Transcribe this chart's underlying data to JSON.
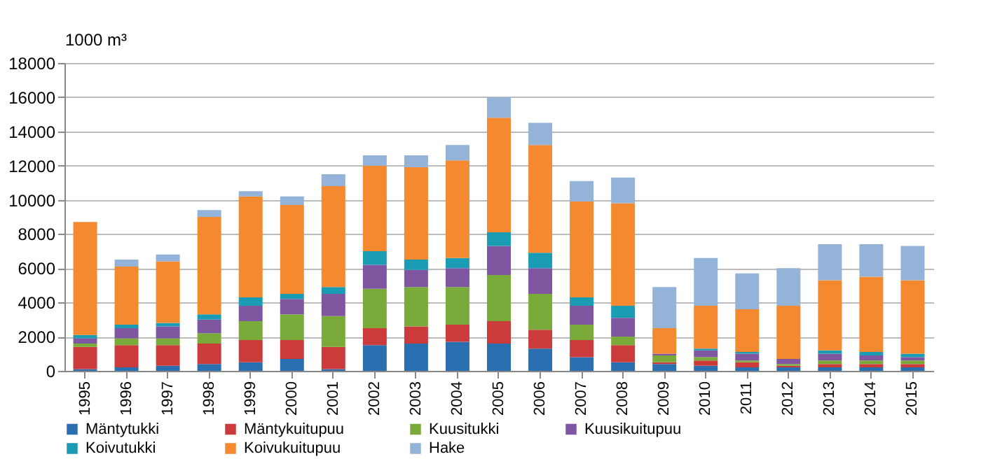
{
  "chart_data": {
    "type": "bar",
    "stacked": true,
    "ylabel": "1000 m³",
    "categories": [
      "1995",
      "1996",
      "1997",
      "1998",
      "1999",
      "2000",
      "2001",
      "2002",
      "2003",
      "2004",
      "2005",
      "2006",
      "2007",
      "2008",
      "2009",
      "2010",
      "2011",
      "2012",
      "2013",
      "2014",
      "2015"
    ],
    "ylim": [
      0,
      18000
    ],
    "yticks": [
      0,
      2000,
      4000,
      6000,
      8000,
      10000,
      12000,
      14000,
      16000,
      18000
    ],
    "grid": "y",
    "legend": "bottom",
    "series": [
      {
        "name": "Mäntytukki",
        "color": "#2a6fb0",
        "values": [
          100,
          200,
          300,
          400,
          500,
          700,
          100,
          1500,
          1600,
          1700,
          1600,
          1300,
          800,
          500,
          400,
          300,
          200,
          200,
          200,
          200,
          200
        ]
      },
      {
        "name": "Mäntykuitupuu",
        "color": "#cb3b3b",
        "values": [
          1300,
          1300,
          1200,
          1200,
          1300,
          1100,
          1300,
          1000,
          1000,
          1000,
          1300,
          1100,
          1000,
          1000,
          100,
          300,
          300,
          100,
          200,
          200,
          200
        ]
      },
      {
        "name": "Kuusitukki",
        "color": "#7aab3a",
        "values": [
          200,
          400,
          400,
          600,
          1100,
          1500,
          1800,
          2300,
          2300,
          2200,
          2700,
          2100,
          900,
          500,
          400,
          200,
          100,
          100,
          200,
          200,
          200
        ]
      },
      {
        "name": "Kuusikuitupuu",
        "color": "#7f56a0",
        "values": [
          300,
          600,
          700,
          800,
          900,
          900,
          1300,
          1400,
          1000,
          1100,
          1700,
          1500,
          1100,
          1100,
          100,
          400,
          400,
          300,
          400,
          300,
          200
        ]
      },
      {
        "name": "Koivutukki",
        "color": "#1a9cb4",
        "values": [
          200,
          200,
          200,
          300,
          500,
          300,
          400,
          800,
          600,
          600,
          800,
          900,
          500,
          700,
          0,
          100,
          100,
          0,
          200,
          200,
          200
        ]
      },
      {
        "name": "Koivukuitupuu",
        "color": "#f5892f",
        "values": [
          6600,
          3400,
          3600,
          5700,
          5900,
          5200,
          5900,
          5000,
          5400,
          5700,
          6700,
          6300,
          5600,
          6000,
          1500,
          2500,
          2500,
          3100,
          4100,
          4400,
          4300
        ]
      },
      {
        "name": "Hake",
        "color": "#93b3d9",
        "values": [
          0,
          400,
          400,
          400,
          300,
          500,
          700,
          600,
          700,
          900,
          1200,
          1300,
          1200,
          1500,
          2400,
          2800,
          2100,
          2200,
          2100,
          1900,
          2000
        ]
      }
    ]
  }
}
